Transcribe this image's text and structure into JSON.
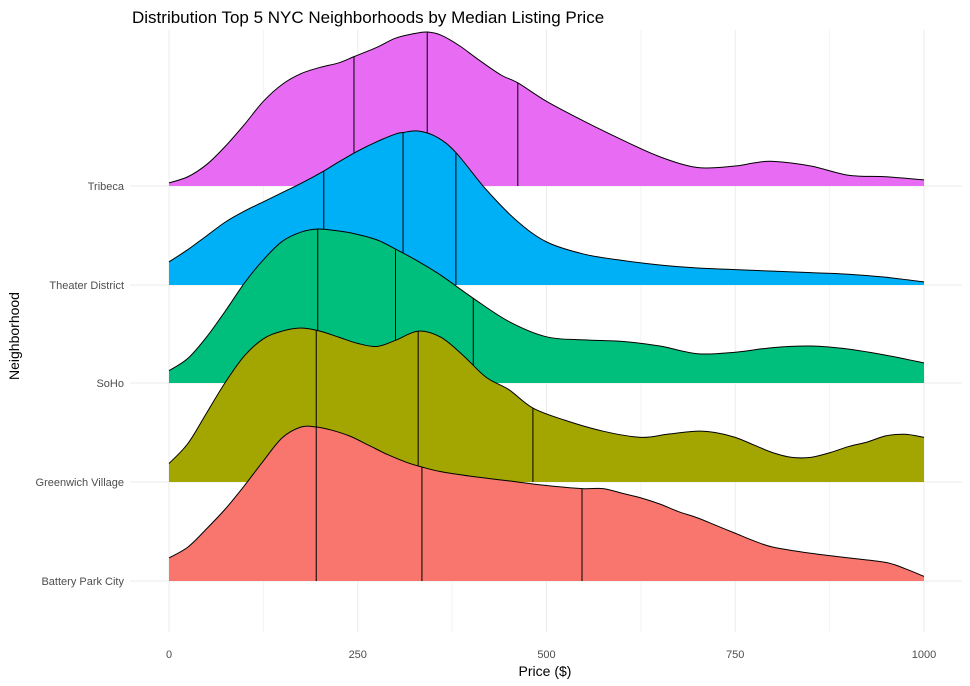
{
  "chart_data": {
    "type": "ridgeline",
    "title": "Distribution  Top 5 NYC Neighborhoods by Median Listing Price",
    "xlabel": "Price ($)",
    "ylabel": "Neighborhood",
    "xlim": [
      0,
      1000
    ],
    "x_ticks": [
      0,
      250,
      500,
      750,
      1000
    ],
    "x_tick_labels": [
      "0",
      "250",
      "500",
      "750",
      "1000"
    ],
    "grid": true,
    "legend": "none",
    "series": [
      {
        "name": "Battery Park City",
        "color": "#F8766D",
        "quantiles": [
          195,
          335,
          547
        ],
        "density_x": [
          0,
          25,
          50,
          75,
          100,
          125,
          150,
          175,
          195,
          215,
          240,
          265,
          290,
          315,
          335,
          360,
          400,
          450,
          500,
          547,
          575,
          600,
          625,
          650,
          675,
          700,
          725,
          750,
          775,
          800,
          850,
          900,
          950,
          975,
          1000
        ],
        "density_y": [
          0.15,
          0.22,
          0.34,
          0.47,
          0.62,
          0.78,
          0.93,
          1.0,
          1.0,
          0.98,
          0.94,
          0.88,
          0.82,
          0.77,
          0.74,
          0.71,
          0.68,
          0.65,
          0.62,
          0.6,
          0.6,
          0.57,
          0.54,
          0.5,
          0.45,
          0.41,
          0.36,
          0.31,
          0.26,
          0.22,
          0.18,
          0.15,
          0.12,
          0.08,
          0.03
        ]
      },
      {
        "name": "Greenwich Village",
        "color": "#A3A500",
        "quantiles": [
          195,
          330,
          482
        ],
        "density_x": [
          0,
          25,
          50,
          75,
          100,
          125,
          150,
          175,
          200,
          225,
          250,
          275,
          300,
          330,
          360,
          390,
          420,
          450,
          482,
          525,
          575,
          625,
          660,
          700,
          725,
          750,
          775,
          800,
          825,
          850,
          875,
          900,
          925,
          950,
          975,
          1000
        ],
        "density_y": [
          0.12,
          0.25,
          0.45,
          0.65,
          0.82,
          0.93,
          0.98,
          1.0,
          0.98,
          0.94,
          0.9,
          0.88,
          0.92,
          0.98,
          0.94,
          0.82,
          0.68,
          0.6,
          0.48,
          0.4,
          0.33,
          0.29,
          0.31,
          0.33,
          0.32,
          0.29,
          0.24,
          0.19,
          0.16,
          0.16,
          0.19,
          0.23,
          0.26,
          0.3,
          0.31,
          0.29
        ]
      },
      {
        "name": "SoHo",
        "color": "#00BF7D",
        "quantiles": [
          197,
          300,
          403
        ],
        "density_x": [
          0,
          25,
          50,
          75,
          100,
          125,
          150,
          175,
          197,
          220,
          245,
          275,
          300,
          330,
          360,
          403,
          450,
          500,
          550,
          600,
          650,
          700,
          750,
          800,
          850,
          900,
          950,
          1000
        ],
        "density_y": [
          0.08,
          0.16,
          0.3,
          0.47,
          0.65,
          0.8,
          0.92,
          0.98,
          1.0,
          0.99,
          0.97,
          0.93,
          0.87,
          0.79,
          0.7,
          0.55,
          0.4,
          0.3,
          0.28,
          0.27,
          0.24,
          0.19,
          0.2,
          0.23,
          0.24,
          0.22,
          0.18,
          0.13
        ]
      },
      {
        "name": "Theater District",
        "color": "#00B0F6",
        "quantiles": [
          205,
          310,
          380
        ],
        "density_x": [
          0,
          25,
          50,
          75,
          100,
          125,
          150,
          175,
          205,
          225,
          250,
          275,
          300,
          310,
          330,
          355,
          380,
          420,
          460,
          500,
          550,
          600,
          650,
          700,
          750,
          800,
          850,
          900,
          950,
          1000
        ],
        "density_y": [
          0.15,
          0.23,
          0.32,
          0.41,
          0.48,
          0.54,
          0.6,
          0.66,
          0.74,
          0.8,
          0.87,
          0.93,
          0.98,
          0.99,
          1.0,
          0.96,
          0.86,
          0.62,
          0.42,
          0.28,
          0.2,
          0.16,
          0.13,
          0.11,
          0.1,
          0.09,
          0.08,
          0.07,
          0.05,
          0.02
        ]
      },
      {
        "name": "Tribeca",
        "color": "#E76BF3",
        "quantiles": [
          245,
          342,
          462
        ],
        "density_x": [
          0,
          25,
          50,
          75,
          100,
          125,
          150,
          175,
          200,
          225,
          245,
          275,
          300,
          325,
          342,
          360,
          385,
          410,
          440,
          462,
          500,
          550,
          600,
          650,
          700,
          750,
          775,
          800,
          850,
          900,
          950,
          1000
        ],
        "density_y": [
          0.02,
          0.06,
          0.14,
          0.26,
          0.4,
          0.55,
          0.66,
          0.73,
          0.77,
          0.8,
          0.84,
          0.9,
          0.96,
          0.99,
          1.0,
          0.98,
          0.91,
          0.82,
          0.72,
          0.67,
          0.55,
          0.42,
          0.3,
          0.19,
          0.12,
          0.13,
          0.15,
          0.16,
          0.13,
          0.07,
          0.06,
          0.04
        ]
      }
    ]
  }
}
